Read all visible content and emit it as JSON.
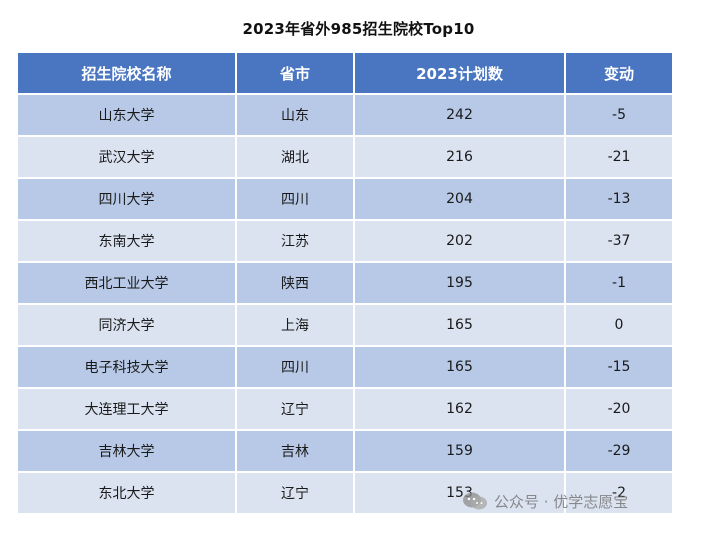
{
  "title": "2023年省外985招生院校Top10",
  "headers": [
    "招生院校名称",
    "省市",
    "2023计划数",
    "变动"
  ],
  "rows": [
    [
      "山东大学",
      "山东",
      "242",
      "-5"
    ],
    [
      "武汉大学",
      "湖北",
      "216",
      "-21"
    ],
    [
      "四川大学",
      "四川",
      "204",
      "-13"
    ],
    [
      "东南大学",
      "江苏",
      "202",
      "-37"
    ],
    [
      "西北工业大学",
      "陕西",
      "195",
      "-1"
    ],
    [
      "同济大学",
      "上海",
      "165",
      "0"
    ],
    [
      "电子科技大学",
      "四川",
      "165",
      "-15"
    ],
    [
      "大连理工大学",
      "辽宁",
      "162",
      "-20"
    ],
    [
      "吉林大学",
      "吉林",
      "159",
      "-29"
    ],
    [
      "东北大学",
      "辽宁",
      "153",
      "-2"
    ]
  ],
  "watermark": {
    "text": "公众号 · 优学志愿宝",
    "icon": "wechat-official-account-icon"
  },
  "colors": {
    "header_bg": "#4a76c1",
    "row_odd": "#b7c9e6",
    "row_even": "#dbe3f1"
  }
}
